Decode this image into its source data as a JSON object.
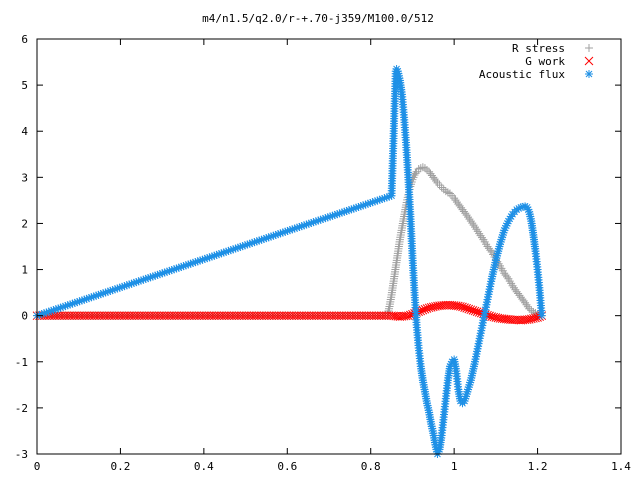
{
  "chart_data": {
    "type": "scatter",
    "title": "m4/n1.5/q2.0/r-+.70-j359/M100.0/512",
    "xlabel": "",
    "ylabel": "",
    "xlim": [
      0,
      1.4
    ],
    "ylim": [
      -3,
      6
    ],
    "xticks": [
      "0",
      "0.2",
      "0.4",
      "0.6",
      "0.8",
      "1",
      "1.2",
      "1.4"
    ],
    "yticks": [
      "-3",
      "-2",
      "-1",
      "0",
      "1",
      "2",
      "3",
      "4",
      "5",
      "6"
    ],
    "grid": false,
    "legend_position": "top-right",
    "series": [
      {
        "name": "R stress",
        "marker": "plus",
        "color": "#a0a0a0",
        "x": [
          0.0,
          0.84,
          0.845,
          0.85,
          0.855,
          0.86,
          0.865,
          0.87,
          0.875,
          0.88,
          0.885,
          0.89,
          0.895,
          0.9,
          0.905,
          0.91,
          0.915,
          0.92,
          0.925,
          0.93,
          0.94,
          0.95,
          0.96,
          0.97,
          0.98,
          0.99,
          1.0,
          1.01,
          1.02,
          1.03,
          1.04,
          1.05,
          1.06,
          1.07,
          1.08,
          1.09,
          1.1,
          1.11,
          1.12,
          1.13,
          1.14,
          1.15,
          1.16,
          1.17,
          1.18,
          1.19,
          1.2,
          1.21
        ],
        "y": [
          0.0,
          0.0,
          0.2,
          0.45,
          0.75,
          1.05,
          1.35,
          1.65,
          1.9,
          2.15,
          2.4,
          2.62,
          2.8,
          2.95,
          3.05,
          3.12,
          3.18,
          3.2,
          3.22,
          3.2,
          3.12,
          3.0,
          2.88,
          2.78,
          2.7,
          2.65,
          2.55,
          2.42,
          2.3,
          2.18,
          2.05,
          1.92,
          1.78,
          1.65,
          1.5,
          1.38,
          1.22,
          1.08,
          0.92,
          0.8,
          0.65,
          0.52,
          0.4,
          0.28,
          0.15,
          0.08,
          0.03,
          0.0
        ]
      },
      {
        "name": "G work",
        "marker": "cross",
        "color": "#ff0000",
        "x": [
          0.0,
          0.85,
          0.86,
          0.87,
          0.88,
          0.89,
          0.9,
          0.91,
          0.92,
          0.93,
          0.94,
          0.95,
          0.96,
          0.97,
          0.98,
          0.99,
          1.0,
          1.01,
          1.02,
          1.03,
          1.04,
          1.05,
          1.06,
          1.07,
          1.08,
          1.09,
          1.1,
          1.11,
          1.12,
          1.13,
          1.14,
          1.15,
          1.16,
          1.17,
          1.18,
          1.19,
          1.2,
          1.21
        ],
        "y": [
          0.0,
          0.0,
          -0.01,
          -0.02,
          -0.01,
          0.0,
          0.03,
          0.07,
          0.1,
          0.14,
          0.17,
          0.19,
          0.21,
          0.22,
          0.23,
          0.23,
          0.22,
          0.21,
          0.19,
          0.16,
          0.13,
          0.1,
          0.07,
          0.04,
          0.01,
          -0.02,
          -0.04,
          -0.06,
          -0.07,
          -0.08,
          -0.09,
          -0.09,
          -0.1,
          -0.09,
          -0.08,
          -0.06,
          -0.04,
          0.0
        ]
      },
      {
        "name": "Acoustic flux",
        "marker": "star",
        "color": "#1e90e6",
        "x": [
          0.0,
          0.85,
          0.86,
          0.862,
          0.865,
          0.87,
          0.875,
          0.88,
          0.885,
          0.89,
          0.895,
          0.9,
          0.905,
          0.91,
          0.915,
          0.92,
          0.925,
          0.93,
          0.935,
          0.94,
          0.945,
          0.95,
          0.955,
          0.96,
          0.965,
          0.97,
          0.975,
          0.98,
          0.985,
          0.99,
          0.995,
          1.0,
          1.005,
          1.01,
          1.015,
          1.02,
          1.025,
          1.03,
          1.04,
          1.05,
          1.06,
          1.07,
          1.08,
          1.09,
          1.1,
          1.11,
          1.12,
          1.13,
          1.14,
          1.15,
          1.16,
          1.17,
          1.175,
          1.18,
          1.185,
          1.19,
          1.195,
          1.2,
          1.205,
          1.21
        ],
        "y": [
          0.0,
          2.6,
          5.3,
          5.35,
          5.3,
          5.1,
          4.8,
          4.3,
          3.7,
          3.0,
          2.2,
          1.3,
          0.5,
          -0.2,
          -0.7,
          -1.1,
          -1.4,
          -1.65,
          -1.9,
          -2.1,
          -2.35,
          -2.55,
          -2.8,
          -3.0,
          -2.9,
          -2.6,
          -2.2,
          -1.8,
          -1.4,
          -1.1,
          -1.0,
          -0.95,
          -1.2,
          -1.6,
          -1.85,
          -1.9,
          -1.85,
          -1.7,
          -1.4,
          -1.0,
          -0.55,
          -0.1,
          0.35,
          0.8,
          1.2,
          1.55,
          1.85,
          2.05,
          2.2,
          2.3,
          2.35,
          2.37,
          2.35,
          2.25,
          2.05,
          1.75,
          1.4,
          1.0,
          0.55,
          0.0
        ]
      }
    ]
  }
}
